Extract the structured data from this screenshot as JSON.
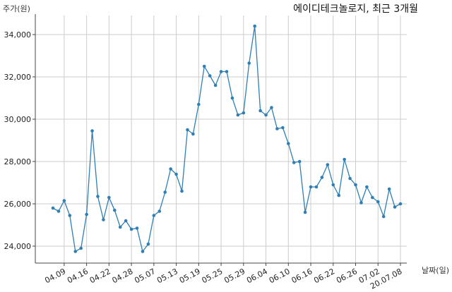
{
  "chart_data": {
    "type": "line",
    "title": "에이디테크놀로지, 최근 3개월",
    "ylabel": "주가(원)",
    "xlabel": "날짜(일)",
    "ylim": [
      23200,
      34900
    ],
    "yticks": [
      24000,
      26000,
      28000,
      30000,
      32000,
      34000
    ],
    "ytick_labels": [
      "24,000",
      "26,000",
      "28,000",
      "30,000",
      "32,000",
      "34,000"
    ],
    "xticks": [
      2,
      6,
      10,
      14,
      18,
      22,
      26,
      30,
      34,
      38,
      42,
      46,
      50,
      54,
      58,
      62
    ],
    "xtick_labels": [
      "04.09",
      "04.16",
      "04.22",
      "04.28",
      "05.07",
      "05.13",
      "05.19",
      "05.25",
      "05.29",
      "06.04",
      "06.10",
      "06.16",
      "06.22",
      "06.26",
      "07.02",
      "20.07.08"
    ],
    "grid": true,
    "color": "#2f7fb5",
    "values": [
      25800,
      25650,
      26150,
      25450,
      23750,
      23900,
      25500,
      29450,
      26350,
      25250,
      26300,
      25700,
      24900,
      25200,
      24800,
      24850,
      23750,
      24100,
      25450,
      25650,
      26550,
      27650,
      27400,
      26600,
      29500,
      29300,
      30700,
      32500,
      32050,
      31600,
      32250,
      32250,
      31000,
      30200,
      30300,
      32650,
      34400,
      30400,
      30200,
      30550,
      29550,
      29600,
      28850,
      27950,
      28000,
      25600,
      26800,
      26800,
      27250,
      27850,
      26900,
      26400,
      28100,
      27200,
      26900,
      26050,
      26800,
      26300,
      26100,
      25400,
      26700,
      25850,
      26000
    ]
  }
}
